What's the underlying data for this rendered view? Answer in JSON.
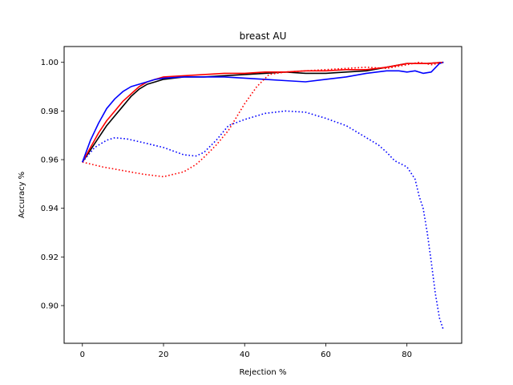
{
  "chart_data": {
    "type": "line",
    "title": "breast AU",
    "xlabel": "Rejection %",
    "ylabel": "Accuracy %",
    "xlim": [
      -4.5,
      93.5
    ],
    "ylim": [
      0.8845,
      1.0065
    ],
    "xticks": [
      0,
      20,
      40,
      60,
      80
    ],
    "xtick_labels": [
      "0",
      "20",
      "40",
      "60",
      "80"
    ],
    "yticks": [
      0.9,
      0.92,
      0.94,
      0.96,
      0.98,
      1.0
    ],
    "ytick_labels": [
      "0.90",
      "0.92",
      "0.94",
      "0.96",
      "0.98",
      "1.00"
    ],
    "grid": false,
    "legend": "none",
    "series": [
      {
        "color": "#000000",
        "style": "solid",
        "x": [
          0,
          2,
          4,
          6,
          8,
          10,
          12,
          14,
          16,
          18,
          20,
          25,
          30,
          35,
          40,
          45,
          50,
          55,
          60,
          65,
          70,
          75,
          80,
          85,
          89
        ],
        "y": [
          0.959,
          0.964,
          0.969,
          0.974,
          0.978,
          0.982,
          0.986,
          0.989,
          0.991,
          0.992,
          0.993,
          0.994,
          0.994,
          0.9945,
          0.995,
          0.9955,
          0.996,
          0.9955,
          0.9955,
          0.996,
          0.9965,
          0.998,
          0.9995,
          0.9995,
          1.0
        ]
      },
      {
        "color": "#ff0000",
        "style": "solid",
        "x": [
          0,
          2,
          4,
          6,
          8,
          10,
          12,
          14,
          16,
          18,
          20,
          25,
          30,
          35,
          40,
          45,
          50,
          55,
          60,
          65,
          70,
          75,
          80,
          85,
          89
        ],
        "y": [
          0.959,
          0.965,
          0.971,
          0.976,
          0.98,
          0.984,
          0.987,
          0.99,
          0.992,
          0.993,
          0.994,
          0.9945,
          0.995,
          0.9955,
          0.9955,
          0.996,
          0.996,
          0.9965,
          0.9965,
          0.997,
          0.997,
          0.998,
          0.9995,
          0.9995,
          1.0
        ]
      },
      {
        "color": "#0000ff",
        "style": "solid",
        "x": [
          0,
          2,
          4,
          6,
          8,
          10,
          12,
          14,
          16,
          18,
          20,
          25,
          30,
          35,
          40,
          45,
          50,
          55,
          60,
          65,
          70,
          75,
          78,
          80,
          82,
          84,
          86,
          88,
          89
        ],
        "y": [
          0.959,
          0.968,
          0.975,
          0.981,
          0.985,
          0.988,
          0.99,
          0.991,
          0.992,
          0.993,
          0.9935,
          0.994,
          0.994,
          0.994,
          0.9935,
          0.993,
          0.9925,
          0.992,
          0.993,
          0.994,
          0.9955,
          0.9965,
          0.9965,
          0.996,
          0.9965,
          0.9955,
          0.996,
          0.9995,
          1.0
        ]
      },
      {
        "color": "#ff0000",
        "style": "dotted",
        "x": [
          0,
          5,
          10,
          15,
          20,
          25,
          28,
          30,
          33,
          36,
          40,
          43,
          46,
          50,
          55,
          60,
          65,
          70,
          75,
          80,
          83,
          86,
          89
        ],
        "y": [
          0.959,
          0.957,
          0.9555,
          0.954,
          0.953,
          0.955,
          0.958,
          0.961,
          0.966,
          0.972,
          0.983,
          0.99,
          0.995,
          0.996,
          0.9965,
          0.997,
          0.9975,
          0.998,
          0.9975,
          0.999,
          1.0,
          0.999,
          1.0
        ]
      },
      {
        "color": "#0000ff",
        "style": "dotted",
        "x": [
          0,
          3,
          6,
          8,
          11,
          15,
          20,
          25,
          28,
          30,
          33,
          36,
          40,
          45,
          50,
          55,
          60,
          65,
          70,
          73,
          75,
          77,
          80,
          82,
          83,
          84,
          85,
          86,
          87,
          88,
          89
        ],
        "y": [
          0.959,
          0.965,
          0.968,
          0.969,
          0.9685,
          0.967,
          0.965,
          0.962,
          0.9615,
          0.963,
          0.968,
          0.974,
          0.9765,
          0.979,
          0.98,
          0.9795,
          0.977,
          0.974,
          0.969,
          0.966,
          0.963,
          0.9595,
          0.957,
          0.952,
          0.945,
          0.94,
          0.93,
          0.918,
          0.905,
          0.895,
          0.89
        ]
      }
    ]
  }
}
